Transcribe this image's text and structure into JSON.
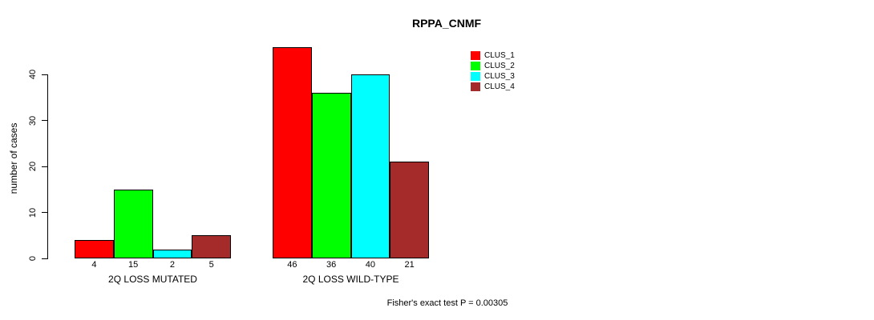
{
  "title": "RPPA_CNMF",
  "ylabel": "number of cases",
  "footer": "Fisher's exact test P = 0.00305",
  "legend": {
    "items": [
      {
        "label": "CLUS_1",
        "color": "#ff0000"
      },
      {
        "label": "CLUS_2",
        "color": "#00ff00"
      },
      {
        "label": "CLUS_3",
        "color": "#00ffff"
      },
      {
        "label": "CLUS_4",
        "color": "#a52a2a"
      }
    ]
  },
  "chart_data": {
    "type": "bar",
    "title": "RPPA_CNMF",
    "xlabel": "",
    "ylabel": "number of cases",
    "categories": [
      "2Q LOSS MUTATED",
      "2Q LOSS WILD-TYPE"
    ],
    "series": [
      {
        "name": "CLUS_1",
        "color": "#ff0000",
        "values": [
          4,
          46
        ]
      },
      {
        "name": "CLUS_2",
        "color": "#00ff00",
        "values": [
          15,
          36
        ]
      },
      {
        "name": "CLUS_3",
        "color": "#00ffff",
        "values": [
          2,
          40
        ]
      },
      {
        "name": "CLUS_4",
        "color": "#a52a2a",
        "values": [
          5,
          21
        ]
      }
    ],
    "bar_value_labels": [
      [
        "4",
        "15",
        "2",
        "5"
      ],
      [
        "46",
        "36",
        "40",
        "21"
      ]
    ],
    "yticks": [
      0,
      10,
      20,
      30,
      40
    ],
    "ylim": [
      0,
      46
    ],
    "grid": false,
    "legend_position": "top-right",
    "legend_entries": [
      "CLUS_1",
      "CLUS_2",
      "CLUS_3",
      "CLUS_4"
    ],
    "annotation": "Fisher's exact test P = 0.00305"
  }
}
